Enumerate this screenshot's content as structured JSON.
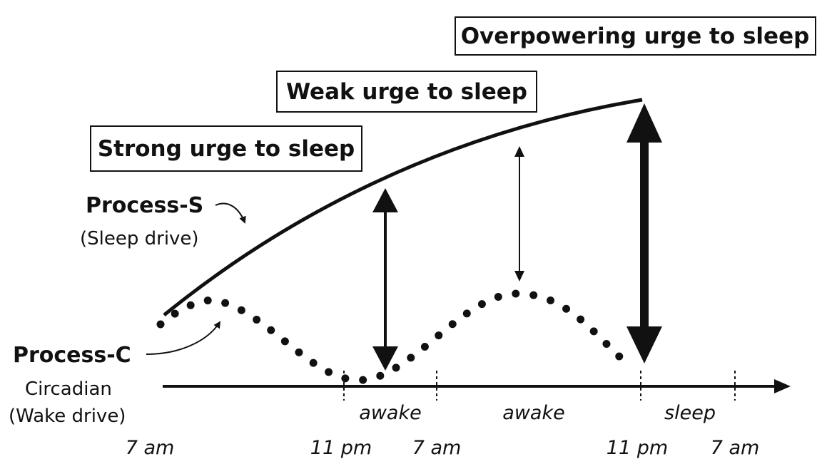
{
  "boxes": [
    "Overpowering urge to sleep",
    "Weak urge to sleep",
    "Strong urge to sleep"
  ],
  "process_s": {
    "name": "Process-S",
    "description": "(Sleep drive)"
  },
  "process_c": {
    "name": "Process-C",
    "line1": "Circadian",
    "line2": "(Wake drive)"
  },
  "phases": [
    "awake",
    "awake",
    "sleep"
  ],
  "times": [
    "7 am",
    "11 pm",
    "7 am",
    "11 pm",
    "7 am"
  ]
}
